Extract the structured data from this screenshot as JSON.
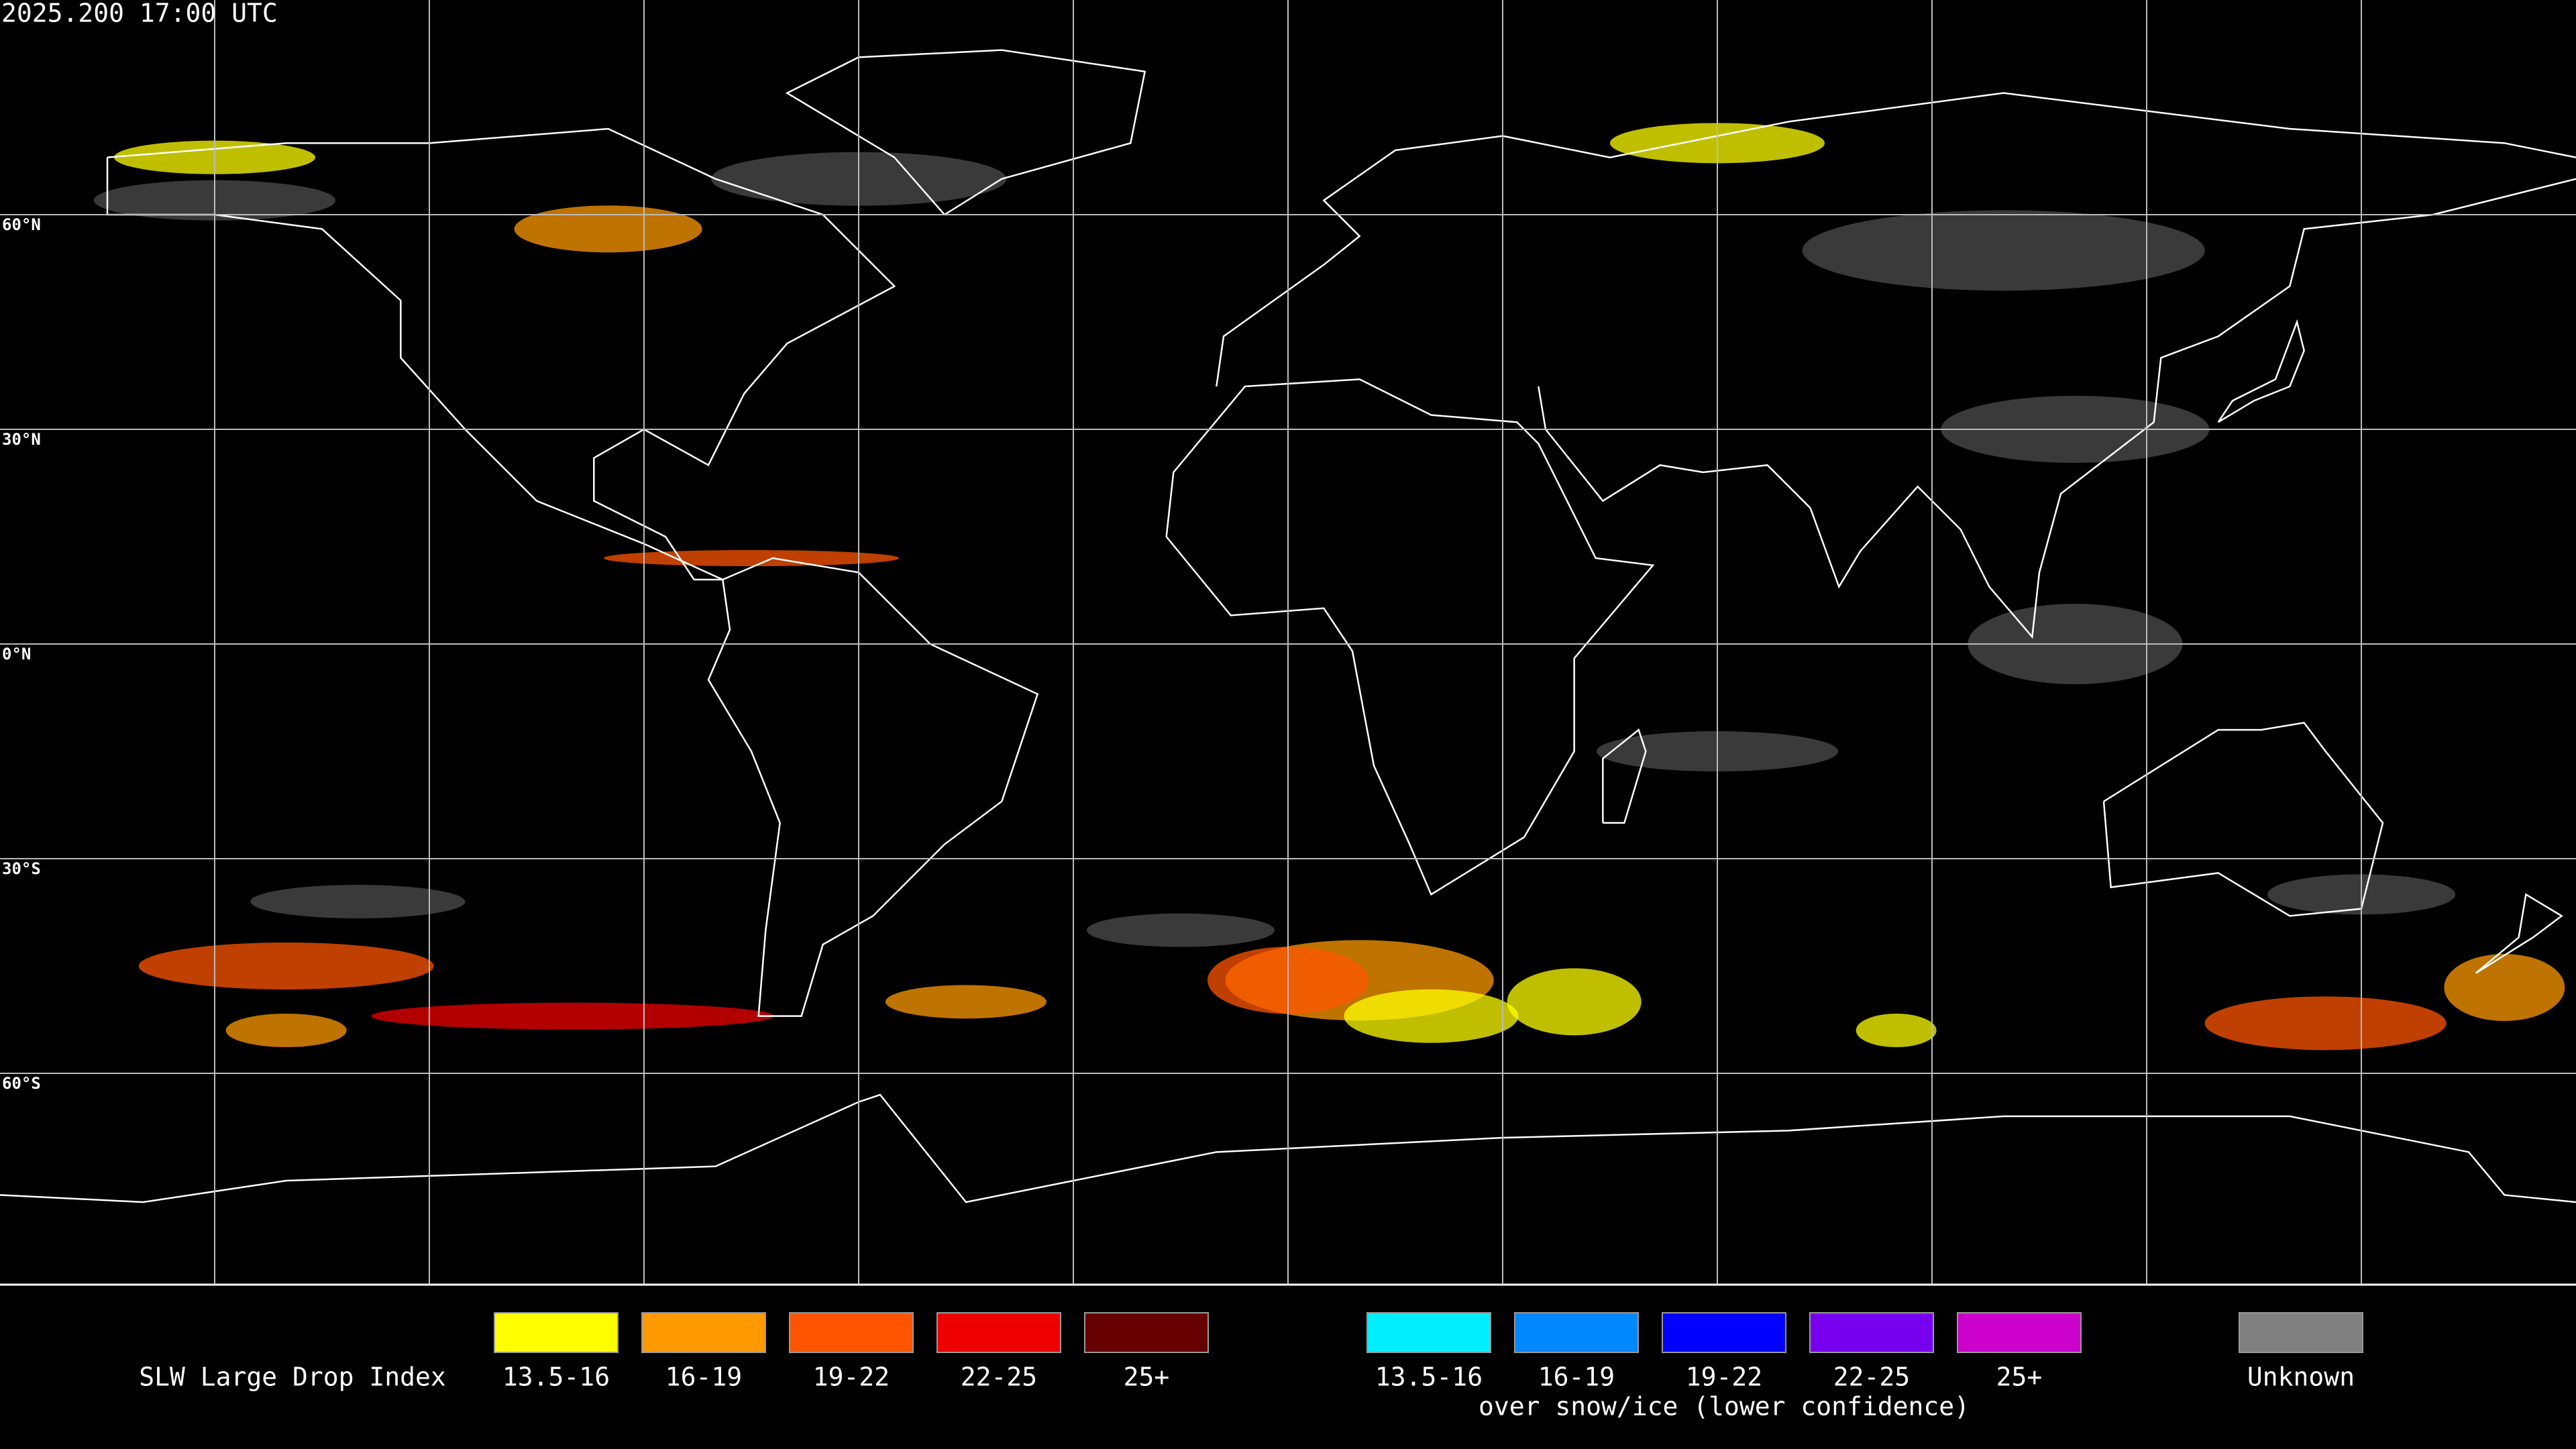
{
  "header": {
    "timestamp": "2025.200 17:00 UTC"
  },
  "map": {
    "latitude_labels": [
      "60°N",
      "30°N",
      "0°N",
      "30°S",
      "60°S"
    ]
  },
  "legend": {
    "title": "SLW Large Drop Index",
    "groups": [
      {
        "items": [
          {
            "label": "13.5-16",
            "color": "#ffff00"
          },
          {
            "label": "16-19",
            "color": "#ff9900"
          },
          {
            "label": "19-22",
            "color": "#ff5500"
          },
          {
            "label": "22-25",
            "color": "#ee0000"
          },
          {
            "label": "25+",
            "color": "#660000"
          }
        ]
      },
      {
        "items": [
          {
            "label": "13.5-16",
            "color": "#00eeff"
          },
          {
            "label": "16-19",
            "color": "#0088ff"
          },
          {
            "label": "19-22",
            "color": "#0000ff"
          },
          {
            "label": "22-25",
            "color": "#7700ee"
          },
          {
            "label": "25+",
            "color": "#cc00cc"
          }
        ],
        "caption": "over snow/ice (lower confidence)"
      },
      {
        "items": [
          {
            "label": "Unknown",
            "color": "#808080"
          }
        ]
      }
    ]
  }
}
